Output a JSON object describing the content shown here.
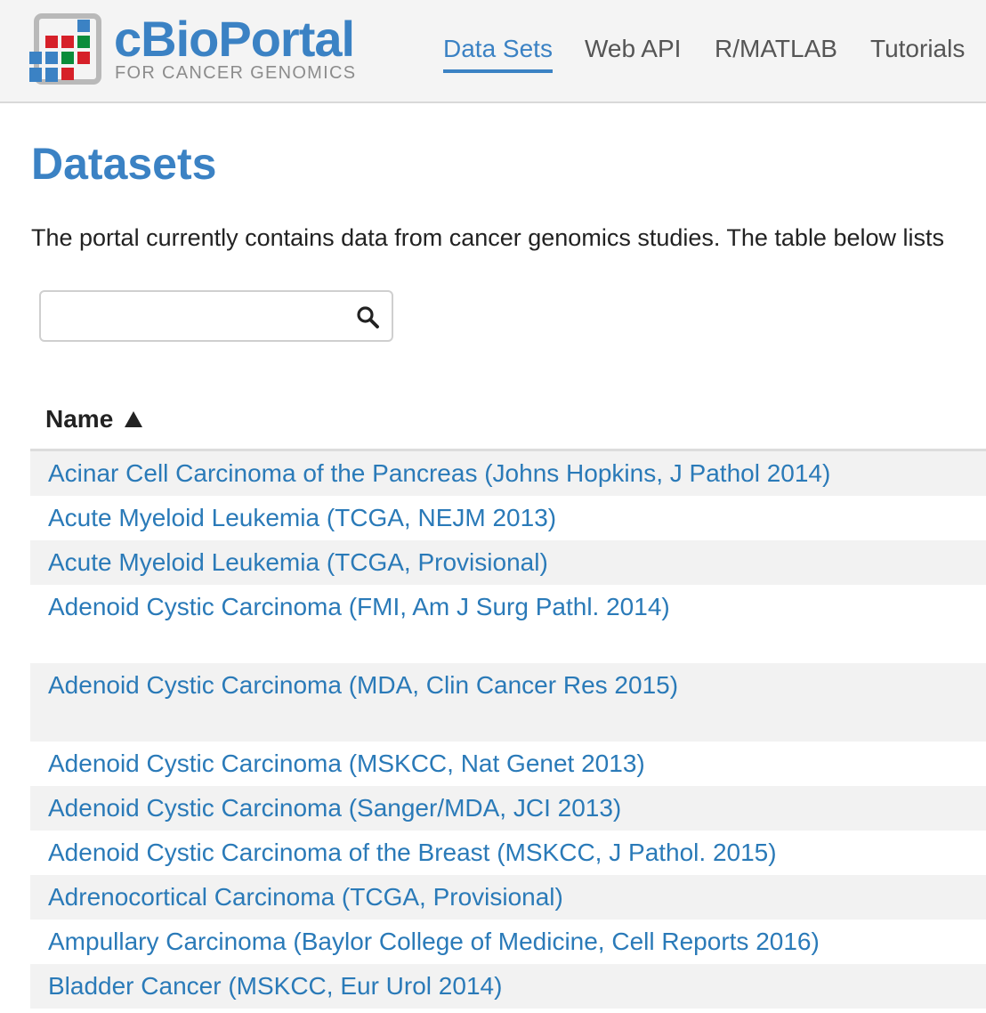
{
  "brand": {
    "title": "cBioPortal",
    "subtitle": "FOR CANCER GENOMICS",
    "colors": {
      "blue": "#3b82c4",
      "red": "#d62029",
      "green": "#0a8c3a",
      "gray": "#8c8c8c"
    }
  },
  "nav": {
    "items": [
      {
        "label": "Data Sets",
        "active": true
      },
      {
        "label": "Web API",
        "active": false
      },
      {
        "label": "R/MATLAB",
        "active": false
      },
      {
        "label": "Tutorials",
        "active": false
      }
    ]
  },
  "page": {
    "title": "Datasets",
    "intro": "The portal currently contains data from cancer genomics studies. The table below lists"
  },
  "search": {
    "value": "",
    "placeholder": "",
    "icon": "search-icon"
  },
  "table": {
    "columns": [
      {
        "label": "Name",
        "sort": "ascending",
        "sort_icon": "sort-ascending-icon"
      }
    ],
    "rows": [
      "Acinar Cell Carcinoma of the Pancreas (Johns Hopkins, J Pathol 2014)",
      "Acute Myeloid Leukemia (TCGA, NEJM 2013)",
      "Acute Myeloid Leukemia (TCGA, Provisional)",
      "Adenoid Cystic Carcinoma (FMI, Am J Surg Pathl. 2014)",
      "Adenoid Cystic Carcinoma (MDA, Clin Cancer Res 2015)",
      "Adenoid Cystic Carcinoma (MSKCC, Nat Genet 2013)",
      "Adenoid Cystic Carcinoma (Sanger/MDA, JCI 2013)",
      "Adenoid Cystic Carcinoma of the Breast (MSKCC, J Pathol. 2015)",
      "Adrenocortical Carcinoma (TCGA, Provisional)",
      "Ampullary Carcinoma (Baylor College of Medicine, Cell Reports 2016)",
      "Bladder Cancer (MSKCC, Eur Urol 2014)"
    ]
  }
}
